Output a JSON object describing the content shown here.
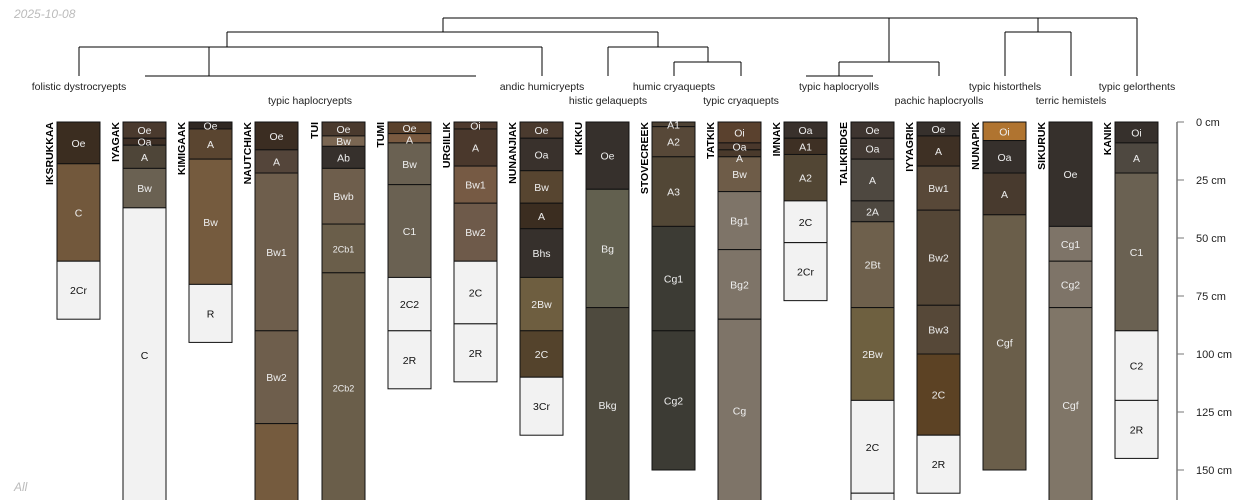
{
  "header": {
    "date": "2025-10-08"
  },
  "footer": {
    "group_label": "All"
  },
  "chart_data": {
    "type": "soil-profile-sketch",
    "depth_unit": "cm",
    "axis": {
      "ticks": [
        0,
        25,
        50,
        75,
        100,
        125,
        150
      ],
      "tick_labels": [
        "0 cm",
        "25 cm",
        "50 cm",
        "75 cm",
        "100 cm",
        "125 cm",
        "150 cm"
      ],
      "ylim": [
        0,
        163
      ]
    },
    "taxa": [
      {
        "label": "folistic dystrocryepts"
      },
      {
        "label": "typic haplocryepts"
      },
      {
        "label": "andic humicryepts"
      },
      {
        "label": "histic gelaquepts"
      },
      {
        "label": "humic cryaquepts"
      },
      {
        "label": "typic cryaquepts"
      },
      {
        "label": "typic haplocryolls"
      },
      {
        "label": "pachic haplocryolls"
      },
      {
        "label": "typic historthels"
      },
      {
        "label": "terric hemistels"
      },
      {
        "label": "typic gelorthents"
      }
    ],
    "profiles": [
      {
        "name": "IKSRUKKAA",
        "horizons": [
          {
            "name": "Oe",
            "top": 0,
            "bottom": 18,
            "color": "#3b2d20"
          },
          {
            "name": "C",
            "top": 18,
            "bottom": 60,
            "color": "#72583c"
          },
          {
            "name": "2Cr",
            "top": 60,
            "bottom": 85,
            "color": "#f2f2f2"
          }
        ]
      },
      {
        "name": "IYAGAK",
        "horizons": [
          {
            "name": "Oe",
            "top": 0,
            "bottom": 7,
            "color": "#4a3a2e"
          },
          {
            "name": "Oa",
            "top": 7,
            "bottom": 10,
            "color": "#3d2e24"
          },
          {
            "name": "A",
            "top": 10,
            "bottom": 20,
            "color": "#4e4538"
          },
          {
            "name": "Bw",
            "top": 20,
            "bottom": 37,
            "color": "#6a6152"
          },
          {
            "name": "C",
            "top": 37,
            "bottom": 170,
            "color": "#f2f2f2"
          }
        ]
      },
      {
        "name": "KIMIGAAK",
        "horizons": [
          {
            "name": "Oe",
            "top": 0,
            "bottom": 3,
            "color": "#302822"
          },
          {
            "name": "A",
            "top": 3,
            "bottom": 16,
            "color": "#5a4530"
          },
          {
            "name": "Bw",
            "top": 16,
            "bottom": 70,
            "color": "#755b3e"
          },
          {
            "name": "R",
            "top": 70,
            "bottom": 95,
            "color": "#f2f2f2"
          }
        ]
      },
      {
        "name": "NAUTCHIAK",
        "horizons": [
          {
            "name": "Oe",
            "top": 0,
            "bottom": 12,
            "color": "#3b2d22"
          },
          {
            "name": "A",
            "top": 12,
            "bottom": 22,
            "color": "#54453a"
          },
          {
            "name": "Bw1",
            "top": 22,
            "bottom": 90,
            "color": "#6e5e4c"
          },
          {
            "name": "Bw2",
            "top": 90,
            "bottom": 130,
            "color": "#6e5e4c"
          },
          {
            "name": "",
            "top": 130,
            "bottom": 170,
            "color": "#755b3e"
          }
        ]
      },
      {
        "name": "TUI",
        "horizons": [
          {
            "name": "Oe",
            "top": 0,
            "bottom": 6,
            "color": "#4a3a2e"
          },
          {
            "name": "Bw",
            "top": 6,
            "bottom": 10.5,
            "color": "#7a6652"
          },
          {
            "name": "Ab",
            "top": 10.5,
            "bottom": 20,
            "color": "#36302c"
          },
          {
            "name": "Bwb",
            "top": 20,
            "bottom": 44,
            "color": "#6e5e4c"
          },
          {
            "name": "2Cb1",
            "top": 44,
            "bottom": 65,
            "color": "#6a5e4a"
          },
          {
            "name": "2Cb2",
            "top": 65,
            "bottom": 170,
            "color": "#6a5e4a"
          }
        ]
      },
      {
        "name": "TUMI",
        "horizons": [
          {
            "name": "Oe",
            "top": 0,
            "bottom": 5,
            "color": "#5a412c"
          },
          {
            "name": "A",
            "top": 5,
            "bottom": 9,
            "color": "#7a5a40"
          },
          {
            "name": "Bw",
            "top": 9,
            "bottom": 27,
            "color": "#6a6152"
          },
          {
            "name": "C1",
            "top": 27,
            "bottom": 67,
            "color": "#6a6152"
          },
          {
            "name": "2C2",
            "top": 67,
            "bottom": 90,
            "color": "#f2f2f2"
          },
          {
            "name": "2R",
            "top": 90,
            "bottom": 115,
            "color": "#f2f2f2"
          }
        ]
      },
      {
        "name": "URGIILIK",
        "horizons": [
          {
            "name": "Oi",
            "top": 0,
            "bottom": 3,
            "color": "#4e3a2e"
          },
          {
            "name": "A",
            "top": 3,
            "bottom": 19,
            "color": "#4a382c"
          },
          {
            "name": "Bw1",
            "top": 19,
            "bottom": 35,
            "color": "#765a44"
          },
          {
            "name": "Bw2",
            "top": 35,
            "bottom": 60,
            "color": "#6e5a4a"
          },
          {
            "name": "2C",
            "top": 60,
            "bottom": 87,
            "color": "#f2f2f2"
          },
          {
            "name": "2R",
            "top": 87,
            "bottom": 112,
            "color": "#f2f2f2"
          }
        ]
      },
      {
        "name": "NUNANJIAK",
        "horizons": [
          {
            "name": "Oe",
            "top": 0,
            "bottom": 7,
            "color": "#4a3a2e"
          },
          {
            "name": "Oa",
            "top": 7,
            "bottom": 21,
            "color": "#39312c"
          },
          {
            "name": "Bw",
            "top": 21,
            "bottom": 35,
            "color": "#574530"
          },
          {
            "name": "A",
            "top": 35,
            "bottom": 46,
            "color": "#3b2d20"
          },
          {
            "name": "Bhs",
            "top": 46,
            "bottom": 67,
            "color": "#36302c"
          },
          {
            "name": "2Bw",
            "top": 67,
            "bottom": 90,
            "color": "#6e5e40"
          },
          {
            "name": "2C",
            "top": 90,
            "bottom": 110,
            "color": "#54432c"
          },
          {
            "name": "3Cr",
            "top": 110,
            "bottom": 135,
            "color": "#f2f2f2"
          }
        ]
      },
      {
        "name": "KIKKU",
        "horizons": [
          {
            "name": "Oe",
            "top": 0,
            "bottom": 29,
            "color": "#36302c"
          },
          {
            "name": "Bg",
            "top": 29,
            "bottom": 80,
            "color": "#62604f"
          },
          {
            "name": "Bkg",
            "top": 80,
            "bottom": 170,
            "color": "#4e4a3e"
          }
        ]
      },
      {
        "name": "STOVECREEK",
        "horizons": [
          {
            "name": "A1",
            "top": 0,
            "bottom": 2,
            "color": "#4e4234"
          },
          {
            "name": "A2",
            "top": 2,
            "bottom": 15,
            "color": "#574838"
          },
          {
            "name": "A3",
            "top": 15,
            "bottom": 45,
            "color": "#524736"
          },
          {
            "name": "Cg1",
            "top": 45,
            "bottom": 90,
            "color": "#3c3b34"
          },
          {
            "name": "Cg2",
            "top": 90,
            "bottom": 150,
            "color": "#3c3b34"
          }
        ]
      },
      {
        "name": "TATKIK",
        "horizons": [
          {
            "name": "Oi",
            "top": 0,
            "bottom": 9,
            "color": "#5a412e"
          },
          {
            "name": "Oa",
            "top": 9,
            "bottom": 12,
            "color": "#4a382c"
          },
          {
            "name": "A",
            "top": 12,
            "bottom": 15,
            "color": "#4a3a2c"
          },
          {
            "name": "Bw",
            "top": 15,
            "bottom": 30,
            "color": "#6e5c48"
          },
          {
            "name": "Bg1",
            "top": 30,
            "bottom": 55,
            "color": "#7e7468"
          },
          {
            "name": "Bg2",
            "top": 55,
            "bottom": 85,
            "color": "#7e7468"
          },
          {
            "name": "Cg",
            "top": 85,
            "bottom": 170,
            "color": "#7e7468"
          }
        ]
      },
      {
        "name": "IMNAK",
        "horizons": [
          {
            "name": "Oa",
            "top": 0,
            "bottom": 7,
            "color": "#39312c"
          },
          {
            "name": "A1",
            "top": 7,
            "bottom": 14,
            "color": "#3e3024"
          },
          {
            "name": "A2",
            "top": 14,
            "bottom": 34,
            "color": "#524634"
          },
          {
            "name": "2C",
            "top": 34,
            "bottom": 52,
            "color": "#f2f2f2"
          },
          {
            "name": "2Cr",
            "top": 52,
            "bottom": 77,
            "color": "#f2f2f2"
          }
        ]
      },
      {
        "name": "TALIKRIDGE",
        "horizons": [
          {
            "name": "Oe",
            "top": 0,
            "bottom": 7,
            "color": "#3e3530"
          },
          {
            "name": "Oa",
            "top": 7,
            "bottom": 16,
            "color": "#433a34"
          },
          {
            "name": "A",
            "top": 16,
            "bottom": 34,
            "color": "#4e4840"
          },
          {
            "name": "2A",
            "top": 34,
            "bottom": 43,
            "color": "#4e4840"
          },
          {
            "name": "2Bt",
            "top": 43,
            "bottom": 80,
            "color": "#6e604c"
          },
          {
            "name": "2Bw",
            "top": 80,
            "bottom": 120,
            "color": "#6e6040"
          },
          {
            "name": "2C",
            "top": 120,
            "bottom": 160,
            "color": "#f2f2f2"
          },
          {
            "name": "",
            "top": 160,
            "bottom": 170,
            "color": "#f2f2f2"
          }
        ]
      },
      {
        "name": "IYYAGRIK",
        "horizons": [
          {
            "name": "Oe",
            "top": 0,
            "bottom": 6,
            "color": "#36302c"
          },
          {
            "name": "A",
            "top": 6,
            "bottom": 19,
            "color": "#3e3024"
          },
          {
            "name": "Bw1",
            "top": 19,
            "bottom": 38,
            "color": "#584838"
          },
          {
            "name": "Bw2",
            "top": 38,
            "bottom": 79,
            "color": "#544636"
          },
          {
            "name": "Bw3",
            "top": 79,
            "bottom": 100,
            "color": "#564838"
          },
          {
            "name": "2C",
            "top": 100,
            "bottom": 135,
            "color": "#5c4224"
          },
          {
            "name": "2R",
            "top": 135,
            "bottom": 160,
            "color": "#f2f2f2"
          }
        ]
      },
      {
        "name": "NUNAPIK",
        "horizons": [
          {
            "name": "Oi",
            "top": 0,
            "bottom": 8,
            "color": "#b07430"
          },
          {
            "name": "Oa",
            "top": 8,
            "bottom": 22,
            "color": "#36302c"
          },
          {
            "name": "A",
            "top": 22,
            "bottom": 40,
            "color": "#483a2e"
          },
          {
            "name": "Cgf",
            "top": 40,
            "bottom": 150,
            "color": "#6a5e4a"
          }
        ]
      },
      {
        "name": "SIKURUK",
        "horizons": [
          {
            "name": "Oe",
            "top": 0,
            "bottom": 45,
            "color": "#36302c"
          },
          {
            "name": "Cg1",
            "top": 45,
            "bottom": 60,
            "color": "#7e7468"
          },
          {
            "name": "Cg2",
            "top": 60,
            "bottom": 80,
            "color": "#7e7468"
          },
          {
            "name": "Cgf",
            "top": 80,
            "bottom": 170,
            "color": "#807668"
          }
        ]
      },
      {
        "name": "KANIK",
        "horizons": [
          {
            "name": "Oi",
            "top": 0,
            "bottom": 9,
            "color": "#36302c"
          },
          {
            "name": "A",
            "top": 9,
            "bottom": 22,
            "color": "#4e4840"
          },
          {
            "name": "C1",
            "top": 22,
            "bottom": 90,
            "color": "#6a6152"
          },
          {
            "name": "C2",
            "top": 90,
            "bottom": 120,
            "color": "#f2f2f2"
          },
          {
            "name": "2R",
            "top": 120,
            "bottom": 145,
            "color": "#f2f2f2"
          }
        ]
      }
    ]
  }
}
